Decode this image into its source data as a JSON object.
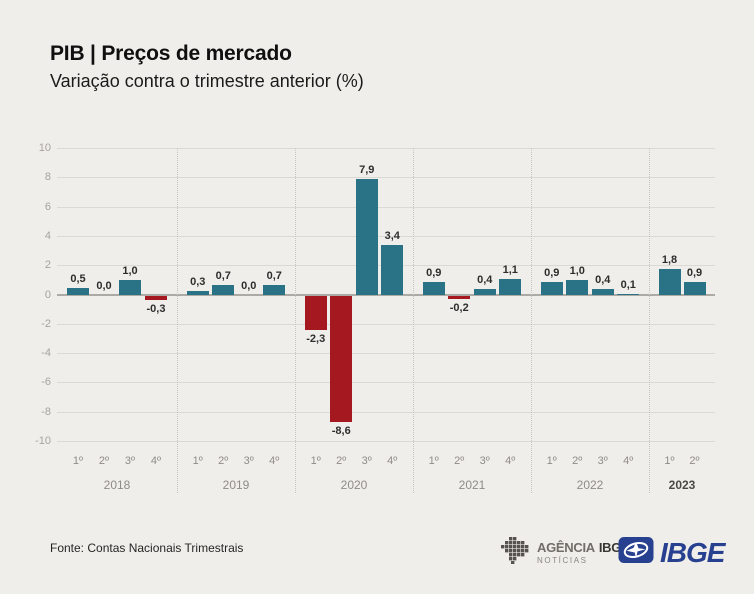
{
  "header": {
    "title": "PIB | Preços de mercado",
    "subtitle": "Variação contra o trimestre anterior (%)"
  },
  "chart_data": {
    "type": "bar",
    "title": "PIB | Preços de mercado",
    "subtitle": "Variação contra o trimestre anterior (%)",
    "ylim": [
      -10,
      10
    ],
    "yticks": [
      10,
      8,
      6,
      4,
      2,
      0,
      -2,
      -4,
      -6,
      -8,
      -10
    ],
    "grid": true,
    "decimal_separator": ",",
    "colors": {
      "positive": "#2a7386",
      "negative": "#a5181f"
    },
    "groups": [
      {
        "year": "2018",
        "quarters": [
          "1º",
          "2º",
          "3º",
          "4º"
        ],
        "values": [
          0.5,
          0.0,
          1.0,
          -0.3
        ],
        "labels": [
          "0,5",
          "0,0",
          "1,0",
          "-0,3"
        ]
      },
      {
        "year": "2019",
        "quarters": [
          "1º",
          "2º",
          "3º",
          "4º"
        ],
        "values": [
          0.3,
          0.7,
          0.0,
          0.7
        ],
        "labels": [
          "0,3",
          "0,7",
          "0,0",
          "0,7"
        ]
      },
      {
        "year": "2020",
        "quarters": [
          "1º",
          "2º",
          "3º",
          "4º"
        ],
        "values": [
          -2.3,
          -8.6,
          7.9,
          3.4
        ],
        "labels": [
          "-2,3",
          "-8,6",
          "7,9",
          "3,4"
        ]
      },
      {
        "year": "2021",
        "quarters": [
          "1º",
          "2º",
          "3º",
          "4º"
        ],
        "values": [
          0.9,
          -0.2,
          0.4,
          1.1
        ],
        "labels": [
          "0,9",
          "-0,2",
          "0,4",
          "1,1"
        ]
      },
      {
        "year": "2022",
        "quarters": [
          "1º",
          "2º",
          "3º",
          "4º"
        ],
        "values": [
          0.9,
          1.0,
          0.4,
          0.1
        ],
        "labels": [
          "0,9",
          "1,0",
          "0,4",
          "0,1"
        ]
      },
      {
        "year": "2023",
        "quarters": [
          "1º",
          "2º"
        ],
        "values": [
          1.8,
          0.9
        ],
        "labels": [
          "1,8",
          "0,9"
        ],
        "current": true
      }
    ]
  },
  "footer": {
    "source": "Fonte: Contas Nacionais Trimestrais",
    "agencia_logo": {
      "icon": "brazil-map-icon",
      "name_light": "AGÊNCIA",
      "name_bold": "IBGE",
      "subtitle": "NOTÍCIAS"
    },
    "ibge_logo": {
      "icon": "ibge-globe-icon",
      "text": "IBGE"
    }
  }
}
